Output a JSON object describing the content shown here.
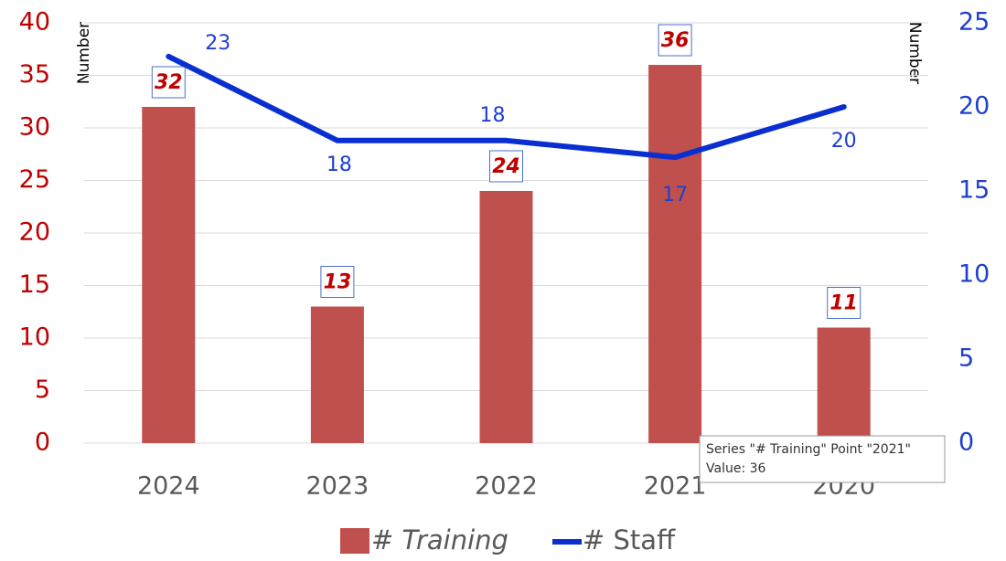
{
  "chart_data": {
    "type": "bar_line",
    "categories": [
      "2024",
      "2023",
      "2022",
      "2021",
      "2020"
    ],
    "series": [
      {
        "name": "# Training",
        "color": "#c0504d",
        "values": [
          32,
          13,
          24,
          36,
          11
        ]
      },
      {
        "name": "# Staff",
        "color": "#0a2fd0",
        "axis": "y2",
        "values": [
          23,
          18,
          18,
          17,
          20
        ]
      }
    ],
    "ylabel": "Number",
    "y2label": "Number",
    "ylim": [
      0,
      40
    ],
    "yticks": [
      0,
      5,
      10,
      15,
      20,
      25,
      30,
      35,
      40
    ],
    "y2lim": [
      0,
      25
    ],
    "y2ticks": [
      0,
      5,
      10,
      15,
      20,
      25
    ],
    "grid": true,
    "legend": "bottom",
    "tooltip": {
      "line1": "Series \"# Training\" Point \"2021\"",
      "line2": "Value: 36"
    }
  }
}
